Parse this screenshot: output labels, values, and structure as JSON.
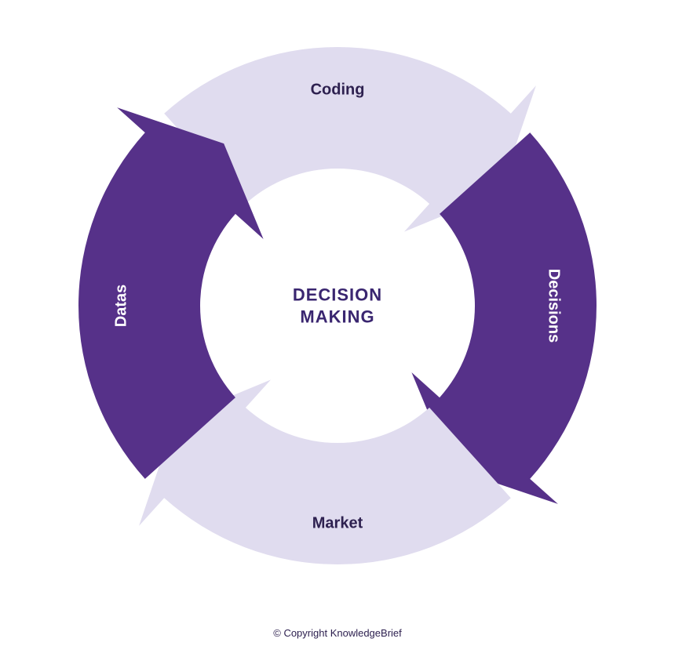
{
  "diagram": {
    "type": "circular-arrow-cycle",
    "center_label_line1": "DECISION",
    "center_label_line2": "MAKING",
    "center_label_color": "#3a2670",
    "background_color": "#ffffff",
    "outer_radius": 330,
    "inner_radius": 175,
    "arrowhead_extension": 48,
    "gap_degrees": 6,
    "label_fontsize": 20,
    "center_fontsize": 22,
    "segments": [
      {
        "id": "coding",
        "label": "Coding",
        "color": "#e0dcef",
        "text_color": "#2e2150",
        "start_angle": -135,
        "end_angle": -45
      },
      {
        "id": "decisions",
        "label": "Decisions",
        "color": "#563189",
        "text_color": "#ffffff",
        "start_angle": -45,
        "end_angle": 45
      },
      {
        "id": "market",
        "label": "Market",
        "color": "#e0dcef",
        "text_color": "#2e2150",
        "start_angle": 45,
        "end_angle": 135
      },
      {
        "id": "datas",
        "label": "Datas",
        "color": "#563189",
        "text_color": "#ffffff",
        "start_angle": 135,
        "end_angle": 225
      }
    ]
  },
  "footer": {
    "copyright": "© Copyright KnowledgeBrief"
  }
}
